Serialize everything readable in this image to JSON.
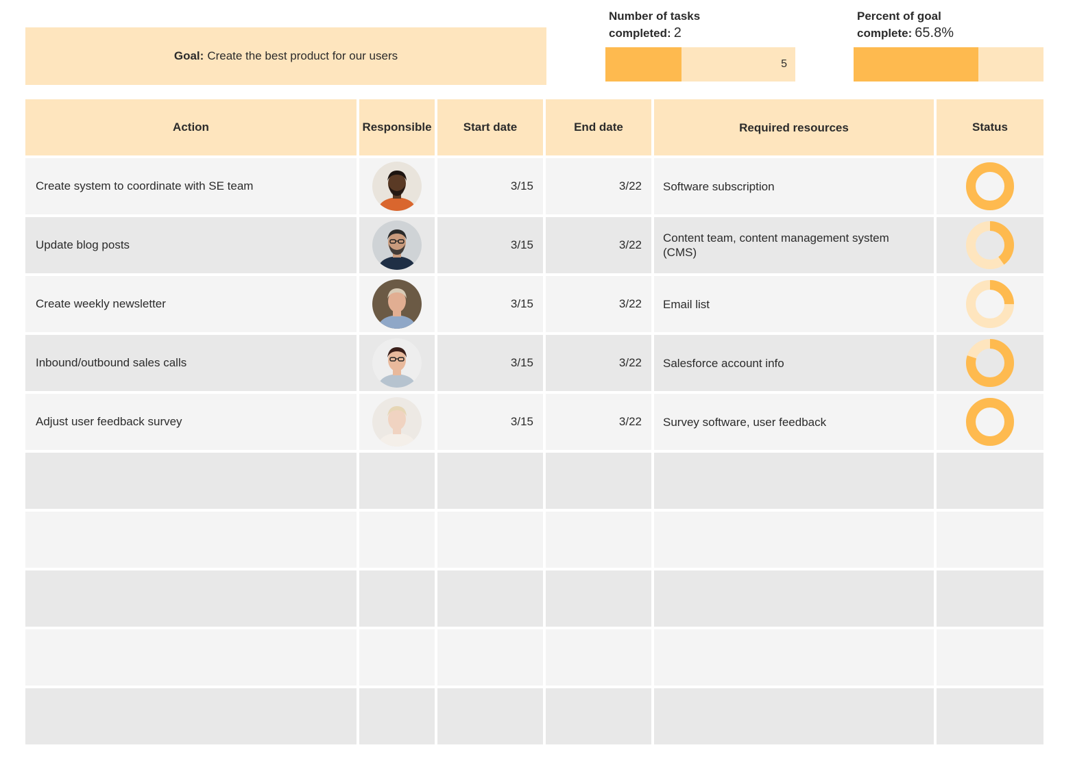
{
  "goal": {
    "label": "Goal:",
    "text": "Create the best product for our users"
  },
  "metrics": {
    "tasks": {
      "label_line1": "Number of tasks",
      "label_line2": "completed:",
      "value": "2",
      "max": "5",
      "fill_fraction": 0.4
    },
    "percent": {
      "label_line1": "Percent of goal",
      "label_line2": "complete:",
      "value": "65.8%",
      "fill_fraction": 0.658
    }
  },
  "colors": {
    "accent": "#feba4f",
    "accent_light": "#fee5be",
    "row_light": "#f4f4f4",
    "row_dark": "#e8e8e8"
  },
  "table": {
    "headers": [
      "Action",
      "Responsible",
      "Start date",
      "End date",
      "Required resources",
      "Status"
    ],
    "rows": [
      {
        "action": "Create system to coordinate with SE team",
        "avatar": "avatar-man-dark-beard",
        "start": "3/15",
        "end": "3/22",
        "resources": "Software subscription",
        "status": 1.0
      },
      {
        "action": "Update blog posts",
        "avatar": "avatar-man-glasses-beard",
        "start": "3/15",
        "end": "3/22",
        "resources": "Content team, content management system (CMS)",
        "status": 0.4
      },
      {
        "action": "Create weekly newsletter",
        "avatar": "avatar-older-man-smiling",
        "start": "3/15",
        "end": "3/22",
        "resources": "Email list",
        "status": 0.25
      },
      {
        "action": "Inbound/outbound sales calls",
        "avatar": "avatar-woman-glasses",
        "start": "3/15",
        "end": "3/22",
        "resources": "Salesforce account info",
        "status": 0.8
      },
      {
        "action": "Adjust user feedback survey",
        "avatar": "avatar-woman-blonde",
        "start": "3/15",
        "end": "3/22",
        "resources": "Survey software, user feedback",
        "status": 1.0
      }
    ],
    "empty_rows": 5
  }
}
